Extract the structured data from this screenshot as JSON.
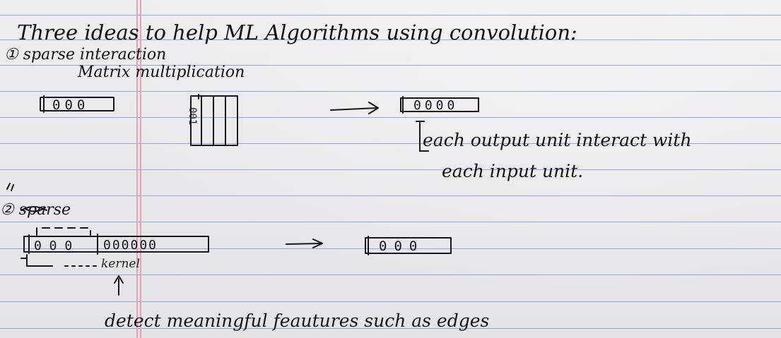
{
  "notes": {
    "title": "Three ideas to help ML Algorithms using convolution:",
    "item1": "① sparse interaction",
    "item1_sub": "Matrix multiplication",
    "row1_input_digits": "000",
    "row1_output_digits": "0000",
    "matrix_digits": "001",
    "annotation_line1": "each output unit interact with",
    "annotation_line2": "each input unit.",
    "item2": "② sparse",
    "row2_input_left": "0 0 0",
    "row2_input_right": "000000",
    "row2_output_digits": "000",
    "kernel_label": "kernel",
    "bottom_note": "detect meaningful feautures such as edges"
  }
}
